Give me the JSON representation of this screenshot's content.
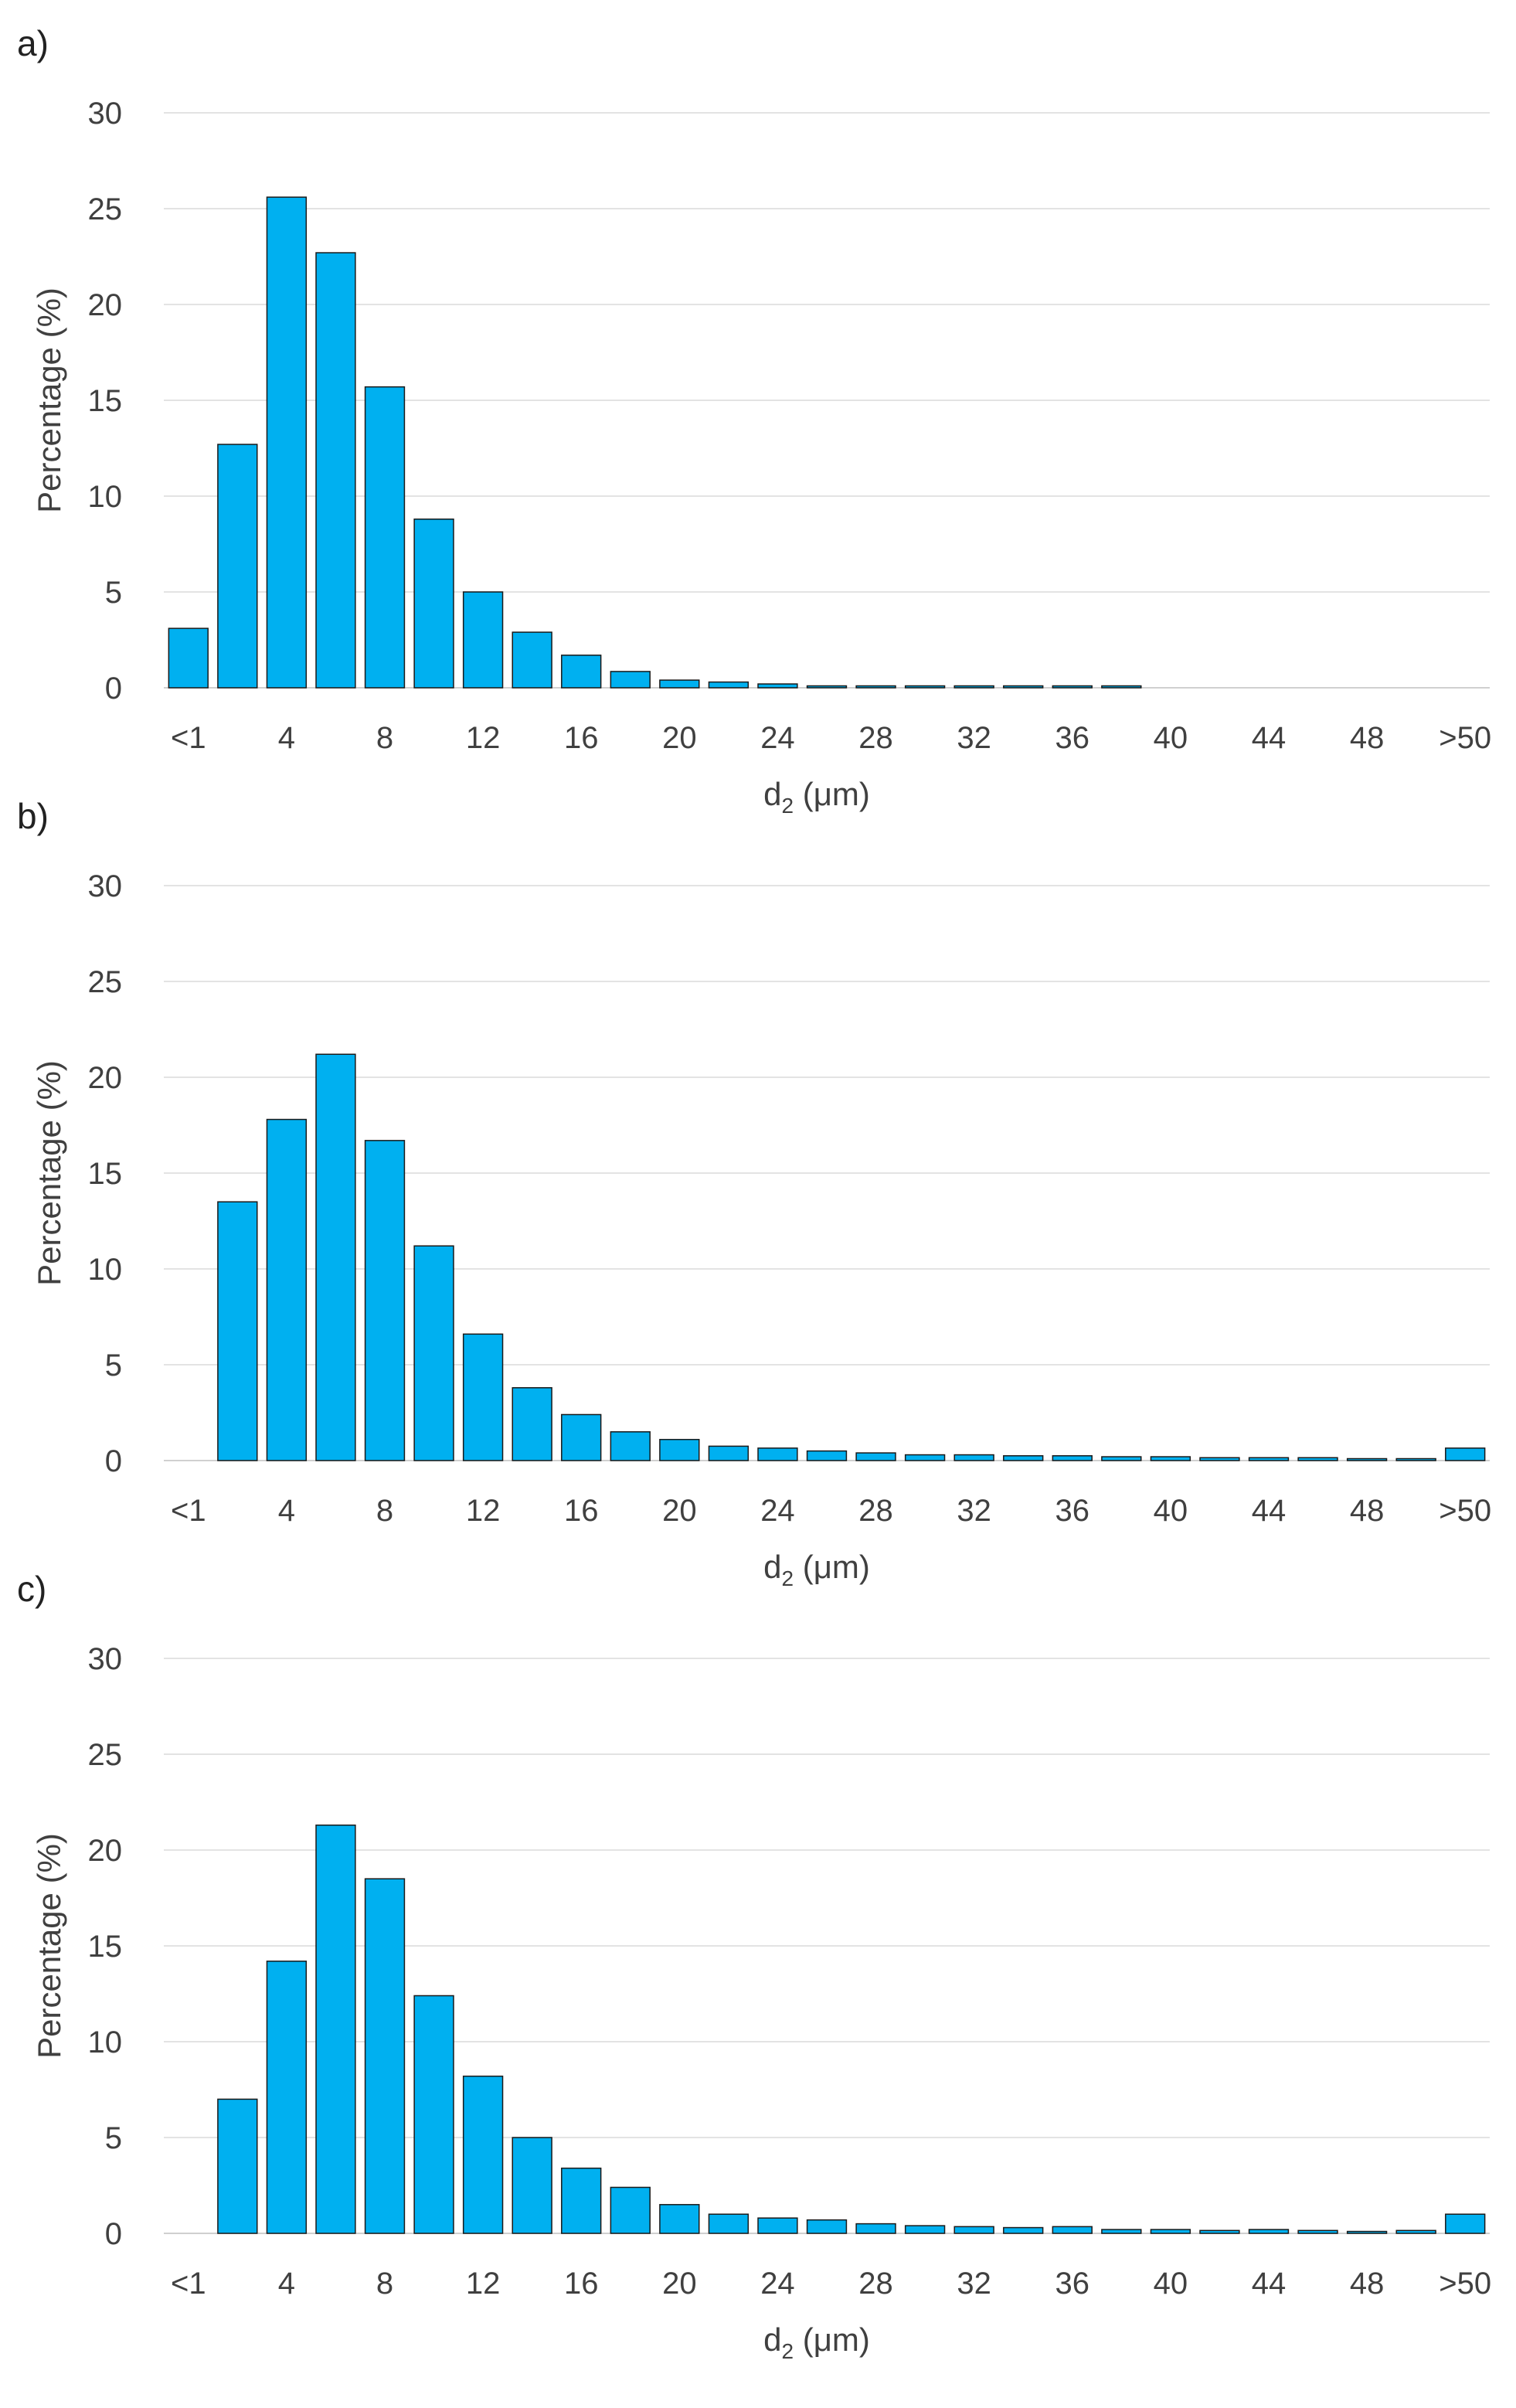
{
  "colors": {
    "bar_fill": "#00b0f0",
    "bar_stroke": "#1a1a1a",
    "grid": "#e3e3e3",
    "text": "#404040"
  },
  "chart_data": [
    {
      "type": "bar",
      "panel_label": "a)",
      "xlabel_main": "d",
      "xlabel_sub": "2",
      "xlabel_unit": "(μm)",
      "ylabel": "Percentage (%)",
      "ylim": [
        0,
        30
      ],
      "yticks": [
        "0",
        "5",
        "10",
        "15",
        "20",
        "25",
        "30"
      ],
      "xtick_labels": [
        "<1",
        "4",
        "8",
        "12",
        "16",
        "20",
        "24",
        "28",
        "32",
        "36",
        "40",
        "44",
        "48",
        ">50"
      ],
      "categories": [
        "<1",
        "2",
        "4",
        "6",
        "8",
        "10",
        "12",
        "14",
        "16",
        "18",
        "20",
        "22",
        "24",
        "26",
        "28",
        "30",
        "32",
        "34",
        "36",
        "38",
        "40",
        "42",
        "44",
        "46",
        "48",
        "50",
        ">50"
      ],
      "values": [
        3.1,
        12.7,
        25.6,
        22.7,
        15.7,
        8.8,
        5.0,
        2.9,
        1.7,
        0.85,
        0.4,
        0.3,
        0.2,
        0.1,
        0.1,
        0.1,
        0.1,
        0.1,
        0.1,
        0.1,
        0,
        0,
        0,
        0,
        0,
        0,
        0
      ]
    },
    {
      "type": "bar",
      "panel_label": "b)",
      "xlabel_main": "d",
      "xlabel_sub": "2",
      "xlabel_unit": "(μm)",
      "ylabel": "Percentage (%)",
      "ylim": [
        0,
        30
      ],
      "yticks": [
        "0",
        "5",
        "10",
        "15",
        "20",
        "25",
        "30"
      ],
      "xtick_labels": [
        "<1",
        "4",
        "8",
        "12",
        "16",
        "20",
        "24",
        "28",
        "32",
        "36",
        "40",
        "44",
        "48",
        ">50"
      ],
      "categories": [
        "<1",
        "2",
        "4",
        "6",
        "8",
        "10",
        "12",
        "14",
        "16",
        "18",
        "20",
        "22",
        "24",
        "26",
        "28",
        "30",
        "32",
        "34",
        "36",
        "38",
        "40",
        "42",
        "44",
        "46",
        "48",
        "50",
        ">50"
      ],
      "values": [
        0,
        13.5,
        17.8,
        21.2,
        16.7,
        11.2,
        6.6,
        3.8,
        2.4,
        1.5,
        1.1,
        0.75,
        0.65,
        0.5,
        0.4,
        0.3,
        0.3,
        0.25,
        0.25,
        0.2,
        0.2,
        0.15,
        0.15,
        0.15,
        0.1,
        0.1,
        0.65
      ]
    },
    {
      "type": "bar",
      "panel_label": "c)",
      "xlabel_main": "d",
      "xlabel_sub": "2",
      "xlabel_unit": "(μm)",
      "ylabel": "Percentage (%)",
      "ylim": [
        0,
        30
      ],
      "yticks": [
        "0",
        "5",
        "10",
        "15",
        "20",
        "25",
        "30"
      ],
      "xtick_labels": [
        "<1",
        "4",
        "8",
        "12",
        "16",
        "20",
        "24",
        "28",
        "32",
        "36",
        "40",
        "44",
        "48",
        ">50"
      ],
      "categories": [
        "<1",
        "2",
        "4",
        "6",
        "8",
        "10",
        "12",
        "14",
        "16",
        "18",
        "20",
        "22",
        "24",
        "26",
        "28",
        "30",
        "32",
        "34",
        "36",
        "38",
        "40",
        "42",
        "44",
        "46",
        "48",
        "50",
        ">50"
      ],
      "values": [
        0,
        7.0,
        14.2,
        21.3,
        18.5,
        12.4,
        8.2,
        5.0,
        3.4,
        2.4,
        1.5,
        1.0,
        0.8,
        0.7,
        0.5,
        0.4,
        0.35,
        0.3,
        0.35,
        0.2,
        0.2,
        0.15,
        0.2,
        0.15,
        0.1,
        0.15,
        1.0
      ]
    }
  ]
}
